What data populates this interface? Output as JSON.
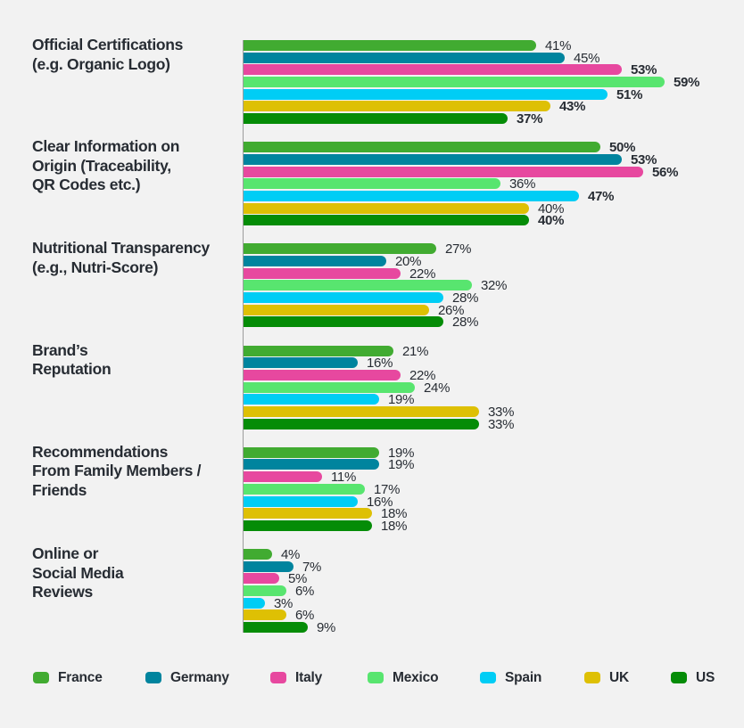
{
  "page": {
    "background_color": "#f2f2f2",
    "text_color": "#272c33",
    "axis_line_color": "#9d9d9d"
  },
  "chart_data": {
    "type": "bar",
    "orientation": "horizontal",
    "unit": "%",
    "title": "",
    "xlabel": "",
    "ylabel": "",
    "xlim": [
      0,
      62
    ],
    "grid": false,
    "legend_position": "bottom",
    "categories": [
      "Official Certifications\n(e.g. Organic Logo)",
      "Clear Information on\nOrigin (Traceability,\nQR Codes etc.)",
      "Nutritional Transparency\n(e.g., Nutri-Score)",
      "Brand’s\nReputation",
      "Recommendations\nFrom Family Members /\nFriends",
      "Online or\nSocial Media\nReviews"
    ],
    "series": [
      {
        "name": "France",
        "color": "#41ab31",
        "values": [
          41,
          50,
          27,
          21,
          19,
          4
        ],
        "bold_labels": [
          false,
          true,
          false,
          false,
          false,
          false
        ]
      },
      {
        "name": "Germany",
        "color": "#00849e",
        "values": [
          45,
          53,
          20,
          16,
          19,
          7
        ],
        "bold_labels": [
          false,
          true,
          false,
          false,
          false,
          false
        ]
      },
      {
        "name": "Italy",
        "color": "#e7489f",
        "values": [
          53,
          56,
          22,
          22,
          11,
          5
        ],
        "bold_labels": [
          true,
          true,
          false,
          false,
          false,
          false
        ]
      },
      {
        "name": "Mexico",
        "color": "#58e56f",
        "values": [
          59,
          36,
          32,
          24,
          17,
          6
        ],
        "bold_labels": [
          true,
          false,
          false,
          false,
          false,
          false
        ]
      },
      {
        "name": "Spain",
        "color": "#00cdf5",
        "values": [
          51,
          47,
          28,
          19,
          16,
          3
        ],
        "bold_labels": [
          true,
          true,
          false,
          false,
          false,
          false
        ]
      },
      {
        "name": "UK",
        "color": "#dec004",
        "values": [
          43,
          40,
          26,
          33,
          18,
          6
        ],
        "bold_labels": [
          true,
          false,
          false,
          false,
          false,
          false
        ]
      },
      {
        "name": "US",
        "color": "#058c07",
        "values": [
          37,
          40,
          28,
          33,
          18,
          9
        ],
        "bold_labels": [
          true,
          true,
          false,
          false,
          false,
          false
        ]
      }
    ],
    "value_label_suffix": "%"
  }
}
